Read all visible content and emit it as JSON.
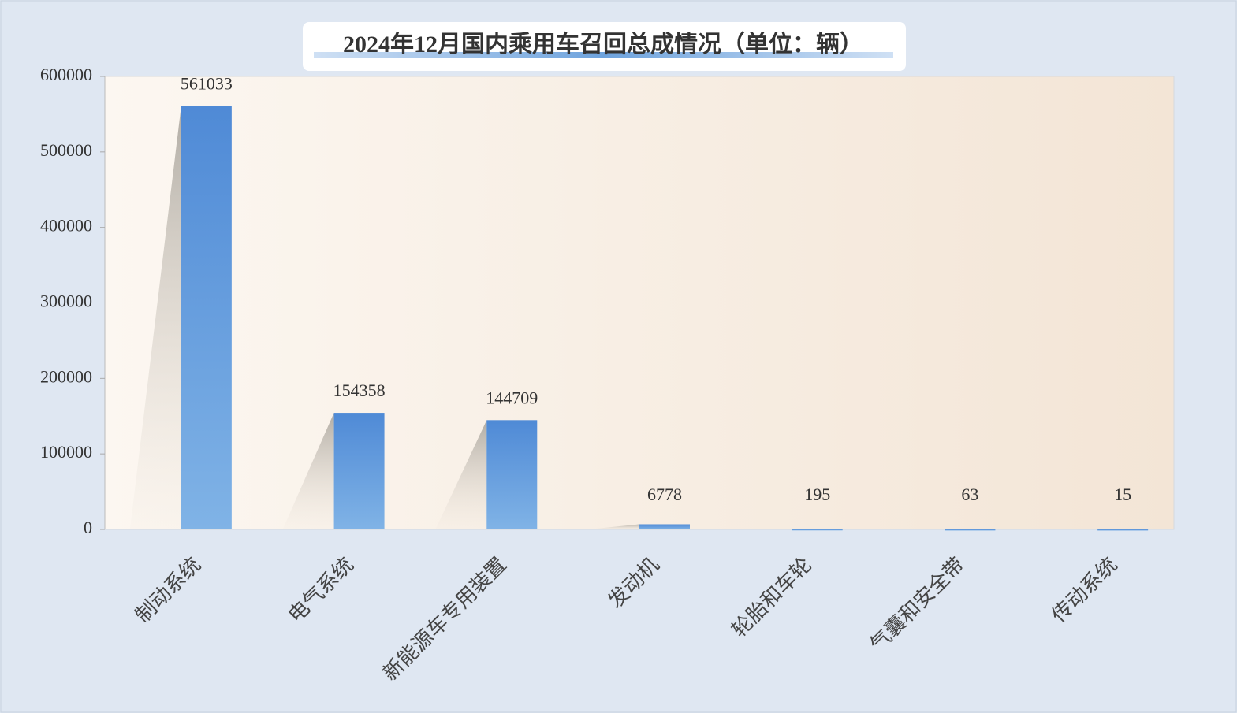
{
  "chart_data": {
    "type": "bar",
    "title": "2024年12月国内乘用车召回总成情况（单位：辆）",
    "categories": [
      "制动系统",
      "电气系统",
      "新能源车专用装置",
      "发动机",
      "轮胎和车轮",
      "气囊和安全带",
      "传动系统"
    ],
    "values": [
      561033,
      154358,
      144709,
      6778,
      195,
      63,
      15
    ],
    "color": "#5b93d8",
    "ylim": [
      0,
      600000
    ],
    "yticks": [
      0,
      100000,
      200000,
      300000,
      400000,
      500000,
      600000
    ],
    "grid": false
  }
}
